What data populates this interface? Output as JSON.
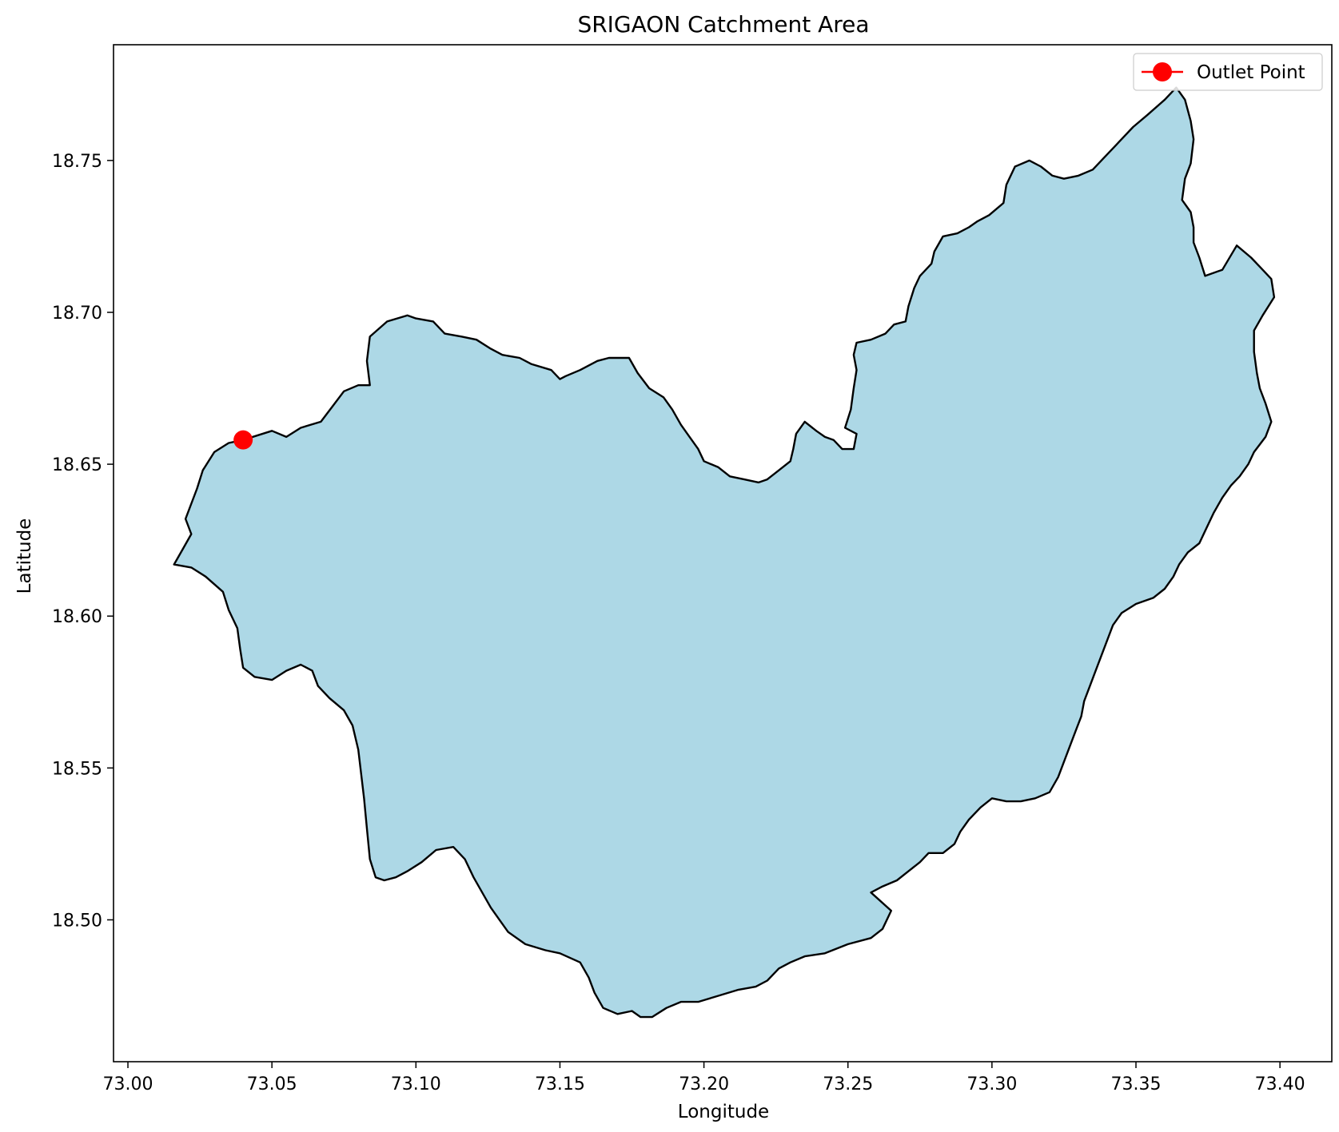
{
  "chart_data": {
    "type": "map",
    "title": "SRIGAON Catchment Area",
    "xlabel": "Longitude",
    "ylabel": "Latitude",
    "xlim": [
      72.995,
      73.418
    ],
    "ylim": [
      18.4533,
      18.7881
    ],
    "xticks": [
      {
        "value": 73.0,
        "label": "73.00"
      },
      {
        "value": 73.05,
        "label": "73.05"
      },
      {
        "value": 73.1,
        "label": "73.10"
      },
      {
        "value": 73.15,
        "label": "73.15"
      },
      {
        "value": 73.2,
        "label": "73.20"
      },
      {
        "value": 73.25,
        "label": "73.25"
      },
      {
        "value": 73.3,
        "label": "73.30"
      },
      {
        "value": 73.35,
        "label": "73.35"
      },
      {
        "value": 73.4,
        "label": "73.40"
      }
    ],
    "yticks": [
      {
        "value": 18.5,
        "label": "18.50"
      },
      {
        "value": 18.55,
        "label": "18.55"
      },
      {
        "value": 18.6,
        "label": "18.60"
      },
      {
        "value": 18.65,
        "label": "18.65"
      },
      {
        "value": 18.7,
        "label": "18.70"
      },
      {
        "value": 18.75,
        "label": "18.75"
      }
    ],
    "grid": false,
    "legend": {
      "position": "top-right",
      "entries": [
        {
          "label": "Outlet Point",
          "color": "#ff0000",
          "marker": "circle"
        }
      ]
    },
    "catchment": {
      "fill_color": "#add8e6",
      "edge_color": "#000000",
      "boundary": [
        [
          73.04,
          18.658
        ],
        [
          73.05,
          18.661
        ],
        [
          73.055,
          18.659
        ],
        [
          73.06,
          18.662
        ],
        [
          73.067,
          18.664
        ],
        [
          73.071,
          18.669
        ],
        [
          73.075,
          18.674
        ],
        [
          73.08,
          18.676
        ],
        [
          73.084,
          18.676
        ],
        [
          73.083,
          18.684
        ],
        [
          73.084,
          18.692
        ],
        [
          73.09,
          18.697
        ],
        [
          73.097,
          18.699
        ],
        [
          73.1,
          18.698
        ],
        [
          73.106,
          18.697
        ],
        [
          73.11,
          18.693
        ],
        [
          73.116,
          18.692
        ],
        [
          73.121,
          18.691
        ],
        [
          73.126,
          18.688
        ],
        [
          73.13,
          18.686
        ],
        [
          73.136,
          18.685
        ],
        [
          73.14,
          18.683
        ],
        [
          73.147,
          18.681
        ],
        [
          73.15,
          18.678
        ],
        [
          73.152,
          18.679
        ],
        [
          73.157,
          18.681
        ],
        [
          73.163,
          18.684
        ],
        [
          73.167,
          18.685
        ],
        [
          73.174,
          18.685
        ],
        [
          73.177,
          18.68
        ],
        [
          73.181,
          18.675
        ],
        [
          73.186,
          18.672
        ],
        [
          73.189,
          18.668
        ],
        [
          73.192,
          18.663
        ],
        [
          73.195,
          18.659
        ],
        [
          73.198,
          18.655
        ],
        [
          73.2,
          18.651
        ],
        [
          73.205,
          18.649
        ],
        [
          73.209,
          18.646
        ],
        [
          73.214,
          18.645
        ],
        [
          73.219,
          18.644
        ],
        [
          73.222,
          18.645
        ],
        [
          73.226,
          18.648
        ],
        [
          73.23,
          18.651
        ],
        [
          73.231,
          18.655
        ],
        [
          73.232,
          18.66
        ],
        [
          73.235,
          18.664
        ],
        [
          73.239,
          18.661
        ],
        [
          73.242,
          18.659
        ],
        [
          73.245,
          18.658
        ],
        [
          73.248,
          18.655
        ],
        [
          73.252,
          18.655
        ],
        [
          73.253,
          18.66
        ],
        [
          73.249,
          18.662
        ],
        [
          73.251,
          18.668
        ],
        [
          73.252,
          18.675
        ],
        [
          73.253,
          18.681
        ],
        [
          73.252,
          18.686
        ],
        [
          73.253,
          18.69
        ],
        [
          73.258,
          18.691
        ],
        [
          73.263,
          18.693
        ],
        [
          73.266,
          18.696
        ],
        [
          73.27,
          18.697
        ],
        [
          73.271,
          18.702
        ],
        [
          73.273,
          18.708
        ],
        [
          73.275,
          18.712
        ],
        [
          73.279,
          18.716
        ],
        [
          73.28,
          18.72
        ],
        [
          73.283,
          18.725
        ],
        [
          73.288,
          18.726
        ],
        [
          73.292,
          18.728
        ],
        [
          73.295,
          18.73
        ],
        [
          73.299,
          18.732
        ],
        [
          73.304,
          18.736
        ],
        [
          73.305,
          18.742
        ],
        [
          73.308,
          18.748
        ],
        [
          73.313,
          18.75
        ],
        [
          73.317,
          18.748
        ],
        [
          73.321,
          18.745
        ],
        [
          73.325,
          18.744
        ],
        [
          73.33,
          18.745
        ],
        [
          73.335,
          18.747
        ],
        [
          73.339,
          18.751
        ],
        [
          73.344,
          18.756
        ],
        [
          73.349,
          18.761
        ],
        [
          73.354,
          18.765
        ],
        [
          73.36,
          18.77
        ],
        [
          73.364,
          18.774
        ],
        [
          73.367,
          18.77
        ],
        [
          73.369,
          18.763
        ],
        [
          73.37,
          18.757
        ],
        [
          73.369,
          18.749
        ],
        [
          73.367,
          18.744
        ],
        [
          73.366,
          18.737
        ],
        [
          73.369,
          18.733
        ],
        [
          73.37,
          18.728
        ],
        [
          73.37,
          18.723
        ],
        [
          73.372,
          18.718
        ],
        [
          73.374,
          18.712
        ],
        [
          73.38,
          18.714
        ],
        [
          73.385,
          18.722
        ],
        [
          73.39,
          18.718
        ],
        [
          73.394,
          18.714
        ],
        [
          73.397,
          18.711
        ],
        [
          73.398,
          18.705
        ],
        [
          73.394,
          18.699
        ],
        [
          73.391,
          18.694
        ],
        [
          73.391,
          18.687
        ],
        [
          73.392,
          18.68
        ],
        [
          73.393,
          18.675
        ],
        [
          73.395,
          18.67
        ],
        [
          73.397,
          18.664
        ],
        [
          73.395,
          18.659
        ],
        [
          73.391,
          18.654
        ],
        [
          73.389,
          18.65
        ],
        [
          73.386,
          18.646
        ],
        [
          73.383,
          18.643
        ],
        [
          73.38,
          18.639
        ],
        [
          73.377,
          18.634
        ],
        [
          73.374,
          18.628
        ],
        [
          73.372,
          18.624
        ],
        [
          73.368,
          18.621
        ],
        [
          73.365,
          18.617
        ],
        [
          73.363,
          18.613
        ],
        [
          73.36,
          18.609
        ],
        [
          73.356,
          18.606
        ],
        [
          73.35,
          18.604
        ],
        [
          73.345,
          18.601
        ],
        [
          73.342,
          18.597
        ],
        [
          73.34,
          18.592
        ],
        [
          73.338,
          18.587
        ],
        [
          73.336,
          18.582
        ],
        [
          73.334,
          18.577
        ],
        [
          73.332,
          18.572
        ],
        [
          73.331,
          18.567
        ],
        [
          73.329,
          18.562
        ],
        [
          73.327,
          18.557
        ],
        [
          73.325,
          18.552
        ],
        [
          73.323,
          18.547
        ],
        [
          73.32,
          18.542
        ],
        [
          73.315,
          18.54
        ],
        [
          73.31,
          18.539
        ],
        [
          73.305,
          18.539
        ],
        [
          73.3,
          18.54
        ],
        [
          73.296,
          18.537
        ],
        [
          73.292,
          18.533
        ],
        [
          73.289,
          18.529
        ],
        [
          73.287,
          18.525
        ],
        [
          73.283,
          18.522
        ],
        [
          73.278,
          18.522
        ],
        [
          73.275,
          18.519
        ],
        [
          73.271,
          18.516
        ],
        [
          73.267,
          18.513
        ],
        [
          73.262,
          18.511
        ],
        [
          73.258,
          18.509
        ],
        [
          73.265,
          18.503
        ],
        [
          73.262,
          18.497
        ],
        [
          73.258,
          18.494
        ],
        [
          73.25,
          18.492
        ],
        [
          73.242,
          18.489
        ],
        [
          73.235,
          18.488
        ],
        [
          73.23,
          18.486
        ],
        [
          73.226,
          18.484
        ],
        [
          73.222,
          18.48
        ],
        [
          73.218,
          18.478
        ],
        [
          73.212,
          18.477
        ],
        [
          73.205,
          18.475
        ],
        [
          73.198,
          18.473
        ],
        [
          73.192,
          18.473
        ],
        [
          73.187,
          18.471
        ],
        [
          73.182,
          18.468
        ],
        [
          73.178,
          18.468
        ],
        [
          73.175,
          18.47
        ],
        [
          73.17,
          18.469
        ],
        [
          73.165,
          18.471
        ],
        [
          73.162,
          18.476
        ],
        [
          73.16,
          18.481
        ],
        [
          73.157,
          18.486
        ],
        [
          73.15,
          18.489
        ],
        [
          73.145,
          18.49
        ],
        [
          73.138,
          18.492
        ],
        [
          73.132,
          18.496
        ],
        [
          73.129,
          18.5
        ],
        [
          73.126,
          18.504
        ],
        [
          73.123,
          18.509
        ],
        [
          73.12,
          18.514
        ],
        [
          73.117,
          18.52
        ],
        [
          73.113,
          18.524
        ],
        [
          73.107,
          18.523
        ],
        [
          73.102,
          18.519
        ],
        [
          73.097,
          18.516
        ],
        [
          73.093,
          18.514
        ],
        [
          73.089,
          18.513
        ],
        [
          73.086,
          18.514
        ],
        [
          73.084,
          18.52
        ],
        [
          73.083,
          18.53
        ],
        [
          73.082,
          18.54
        ],
        [
          73.081,
          18.548
        ],
        [
          73.08,
          18.556
        ],
        [
          73.078,
          18.564
        ],
        [
          73.075,
          18.569
        ],
        [
          73.07,
          18.573
        ],
        [
          73.066,
          18.577
        ],
        [
          73.064,
          18.582
        ],
        [
          73.06,
          18.584
        ],
        [
          73.055,
          18.582
        ],
        [
          73.05,
          18.579
        ],
        [
          73.044,
          18.58
        ],
        [
          73.04,
          18.583
        ],
        [
          73.039,
          18.589
        ],
        [
          73.038,
          18.596
        ],
        [
          73.035,
          18.602
        ],
        [
          73.033,
          18.608
        ],
        [
          73.027,
          18.613
        ],
        [
          73.022,
          18.616
        ],
        [
          73.016,
          18.617
        ],
        [
          73.019,
          18.622
        ],
        [
          73.022,
          18.627
        ],
        [
          73.02,
          18.632
        ],
        [
          73.022,
          18.637
        ],
        [
          73.024,
          18.642
        ],
        [
          73.026,
          18.648
        ],
        [
          73.03,
          18.654
        ],
        [
          73.035,
          18.657
        ],
        [
          73.04,
          18.658
        ]
      ]
    },
    "outlet_point": {
      "label": "Outlet Point",
      "lon": 73.04,
      "lat": 18.658,
      "color": "#ff0000"
    }
  }
}
